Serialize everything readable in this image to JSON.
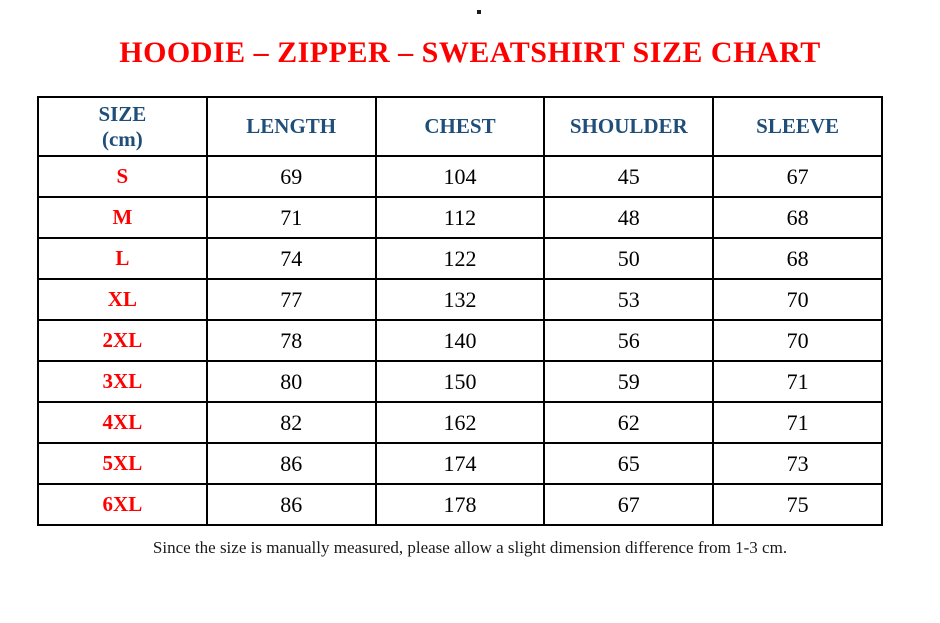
{
  "page": {
    "stray_dot": ".",
    "title": "HOODIE – ZIPPER – SWEATSHIRT SIZE CHART",
    "footnote": "Since the size is manually measured, please allow a slight dimension difference from 1-3 cm."
  },
  "colors": {
    "title_red": "#ff0000",
    "header_blue": "#1f4e79",
    "size_label_red": "#ff0000",
    "data_text": "#000000",
    "border": "#000000",
    "background": "#ffffff"
  },
  "table": {
    "header": {
      "size_line1": "SIZE",
      "size_line2": "(cm)",
      "cols": [
        "LENGTH",
        "CHEST",
        "SHOULDER",
        "SLEEVE"
      ]
    },
    "rows": [
      {
        "size": "S",
        "length": "69",
        "chest": "104",
        "shoulder": "45",
        "sleeve": "67"
      },
      {
        "size": "M",
        "length": "71",
        "chest": "112",
        "shoulder": "48",
        "sleeve": "68"
      },
      {
        "size": "L",
        "length": "74",
        "chest": "122",
        "shoulder": "50",
        "sleeve": "68"
      },
      {
        "size": "XL",
        "length": "77",
        "chest": "132",
        "shoulder": "53",
        "sleeve": "70"
      },
      {
        "size": "2XL",
        "length": "78",
        "chest": "140",
        "shoulder": "56",
        "sleeve": "70"
      },
      {
        "size": "3XL",
        "length": "80",
        "chest": "150",
        "shoulder": "59",
        "sleeve": "71"
      },
      {
        "size": "4XL",
        "length": "82",
        "chest": "162",
        "shoulder": "62",
        "sleeve": "71"
      },
      {
        "size": "5XL",
        "length": "86",
        "chest": "174",
        "shoulder": "65",
        "sleeve": "73"
      },
      {
        "size": "6XL",
        "length": "86",
        "chest": "178",
        "shoulder": "67",
        "sleeve": "75"
      }
    ]
  }
}
